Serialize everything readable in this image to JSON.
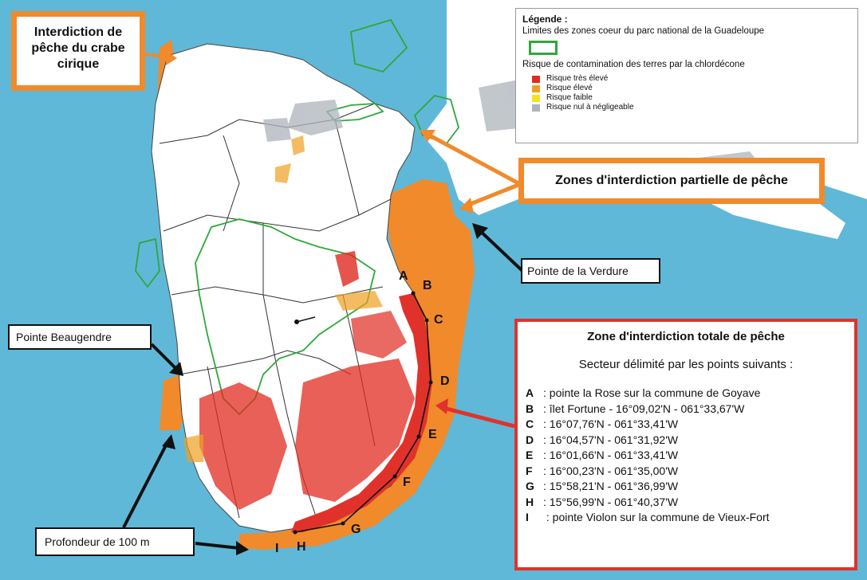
{
  "callouts": {
    "crabe": "Interdiction de pêche du crabe cirique",
    "partielle": "Zones d'interdiction partielle de pêche",
    "verdure": "Pointe de la Verdure",
    "beaugendre": "Pointe Beaugendre",
    "profondeur": "Profondeur de 100 m"
  },
  "legend": {
    "title": "Légende :",
    "parc": "Limites des zones coeur du parc national de la Guadeloupe",
    "risque_title": "Risque de contamination des terres par la chlordécone",
    "items": [
      {
        "label": "Risque très élevé",
        "color": "#e02b20"
      },
      {
        "label": "Risque élevé",
        "color": "#f0a020"
      },
      {
        "label": "Risque faible",
        "color": "#f2e41f"
      },
      {
        "label": "Risque nul à négligeable",
        "color": "#aeb4bb"
      }
    ],
    "parc_color": "#2fa83a"
  },
  "total": {
    "title": "Zone d'interdiction totale de pêche",
    "subtitle": "Secteur délimité par les points suivants :",
    "points": [
      {
        "letter": "A",
        "text": ":  pointe la Rose sur la commune de Goyave"
      },
      {
        "letter": "B",
        "text": ":  îlet Fortune - 16°09,02'N -  061°33,67'W"
      },
      {
        "letter": "C",
        "text": ": 16°07,76'N -  061°33,41'W"
      },
      {
        "letter": "D",
        "text": ": 16°04,57'N -  061°31,92'W"
      },
      {
        "letter": "E",
        "text": ": 16°01,66'N -  061°33,41'W"
      },
      {
        "letter": "F",
        "text": ": 16°00,23'N -  061°35,00'W"
      },
      {
        "letter": "G",
        "text": ": 15°58,21'N -  061°36,99'W"
      },
      {
        "letter": "H",
        "text": ": 15°56,99'N -  061°40,37'W"
      },
      {
        "letter": "I",
        "text": " : pointe Violon sur la commune de Vieux-Fort"
      }
    ]
  },
  "map_labels": [
    "A",
    "B",
    "C",
    "D",
    "E",
    "F",
    "G",
    "H",
    "I"
  ],
  "colors": {
    "sea": "#5fb8d8",
    "land": "#ffffff",
    "partial_zone": "#f08a2b",
    "total_zone": "#e0322a"
  }
}
